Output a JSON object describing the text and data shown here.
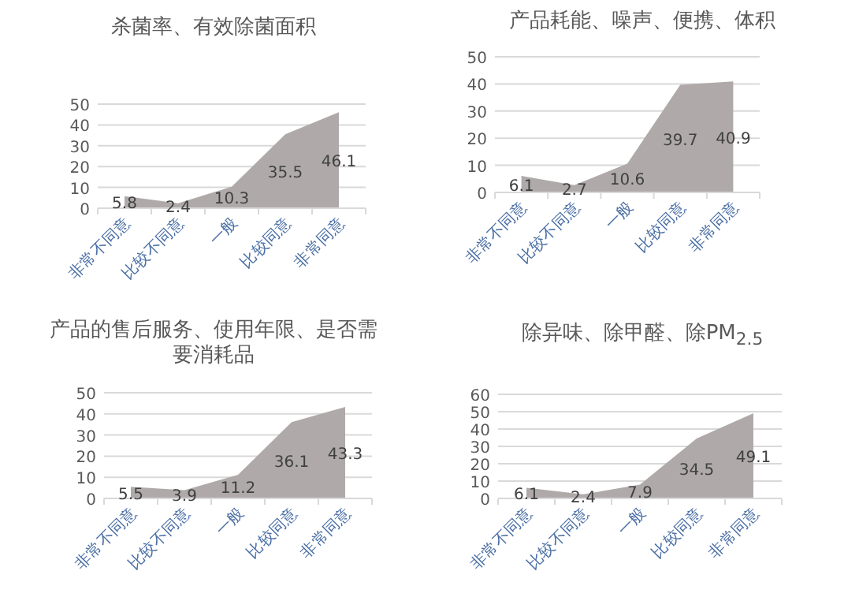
{
  "chart_data": [
    {
      "type": "area",
      "title": "杀菌率、有效除菌面积",
      "categories": [
        "非常不同意",
        "比较不同意",
        "一般",
        "比较同意",
        "非常同意"
      ],
      "values": [
        5.8,
        2.4,
        10.3,
        35.5,
        46.1
      ],
      "color": "#afaaa9",
      "ylim": [
        0,
        50
      ],
      "yticks": [
        0,
        10,
        20,
        30,
        40,
        50
      ],
      "grid": "y",
      "data_labels": true
    },
    {
      "type": "area",
      "title": "产品耗能、噪声、便携、体积",
      "categories": [
        "非常不同意",
        "比较不同意",
        "一般",
        "比较同意",
        "非常同意"
      ],
      "values": [
        6.1,
        2.7,
        10.6,
        39.7,
        40.9
      ],
      "color": "#afaaa9",
      "ylim": [
        0,
        50
      ],
      "yticks": [
        0,
        10,
        20,
        30,
        40,
        50
      ],
      "grid": "y",
      "data_labels": true
    },
    {
      "type": "area",
      "title": "产品的售后服务、使用年限、是否需要消耗品",
      "categories": [
        "非常不同意",
        "比较不同意",
        "一般",
        "比较同意",
        "非常同意"
      ],
      "values": [
        5.5,
        3.9,
        11.2,
        36.1,
        43.3
      ],
      "color": "#afaaa9",
      "ylim": [
        0,
        50
      ],
      "yticks": [
        0,
        10,
        20,
        30,
        40,
        50
      ],
      "grid": "y",
      "data_labels": true
    },
    {
      "type": "area",
      "title": "除异味、除甲醛、除PM$_{2.5}$",
      "categories": [
        "非常不同意",
        "比较不同意",
        "一般",
        "比较同意",
        "非常同意"
      ],
      "values": [
        6.1,
        2.4,
        7.9,
        34.5,
        49.1
      ],
      "color": "#afaaa9",
      "ylim": [
        0,
        60
      ],
      "yticks": [
        0,
        10,
        20,
        30,
        40,
        50,
        60
      ],
      "grid": "y",
      "data_labels": true
    }
  ]
}
